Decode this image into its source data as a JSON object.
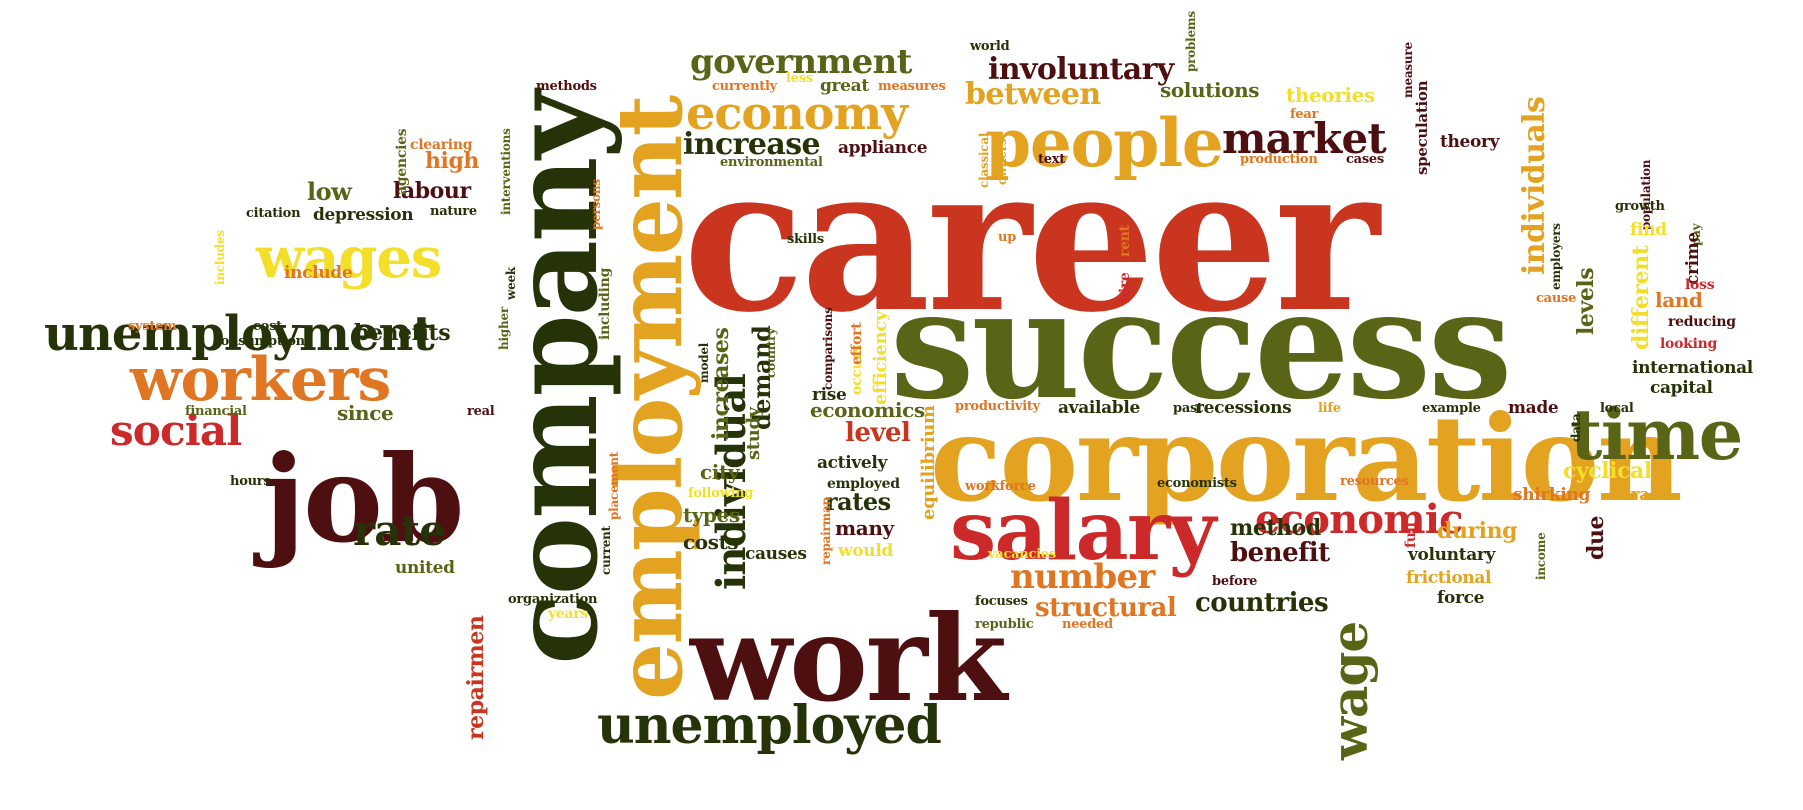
{
  "colors": {
    "red": "#c9351f",
    "olive": "#5a6416",
    "dark_green": "#263308",
    "maroon": "#4e0f10",
    "orange": "#e07522",
    "yellow": "#f3df2a",
    "gold": "#e3a21f",
    "crimson": "#cc2a2a",
    "light_orange": "#f2a33a"
  },
  "words": [
    {
      "text": "career",
      "color": "red"
    },
    {
      "text": "success",
      "color": "olive"
    },
    {
      "text": "company",
      "color": "dark_green"
    },
    {
      "text": "employment",
      "color": "gold"
    },
    {
      "text": "job",
      "color": "maroon"
    },
    {
      "text": "corporation",
      "color": "gold"
    },
    {
      "text": "work",
      "color": "maroon"
    },
    {
      "text": "salary",
      "color": "crimson"
    },
    {
      "text": "workers",
      "color": "orange"
    },
    {
      "text": "unemployment",
      "color": "dark_green"
    },
    {
      "text": "time",
      "color": "olive"
    },
    {
      "text": "unemployed",
      "color": "dark_green"
    },
    {
      "text": "people",
      "color": "gold"
    },
    {
      "text": "wages",
      "color": "yellow"
    },
    {
      "text": "economy",
      "color": "gold"
    },
    {
      "text": "individual",
      "color": "dark_green"
    },
    {
      "text": "market",
      "color": "maroon"
    },
    {
      "text": "economic",
      "color": "crimson"
    },
    {
      "text": "wage",
      "color": "olive"
    },
    {
      "text": "social",
      "color": "crimson"
    },
    {
      "text": "rate",
      "color": "dark_green"
    },
    {
      "text": "number",
      "color": "orange"
    },
    {
      "text": "government",
      "color": "olive"
    },
    {
      "text": "individuals",
      "color": "gold"
    },
    {
      "text": "involuntary",
      "color": "maroon"
    },
    {
      "text": "increase",
      "color": "dark_green"
    },
    {
      "text": "between",
      "color": "gold"
    },
    {
      "text": "structural",
      "color": "orange"
    },
    {
      "text": "countries",
      "color": "dark_green"
    },
    {
      "text": "benefit",
      "color": "maroon"
    },
    {
      "text": "repairmen",
      "color": "red"
    },
    {
      "text": "different",
      "color": "yellow"
    },
    {
      "text": "level",
      "color": "red"
    },
    {
      "text": "rates",
      "color": "dark_green"
    },
    {
      "text": "low",
      "color": "olive"
    },
    {
      "text": "labour",
      "color": "maroon"
    },
    {
      "text": "high",
      "color": "orange"
    },
    {
      "text": "depression",
      "color": "dark_green"
    },
    {
      "text": "benefits",
      "color": "dark_green"
    },
    {
      "text": "since",
      "color": "olive"
    },
    {
      "text": "solutions",
      "color": "olive"
    },
    {
      "text": "theories",
      "color": "yellow"
    },
    {
      "text": "theory",
      "color": "maroon"
    },
    {
      "text": "speculation",
      "color": "maroon"
    },
    {
      "text": "levels",
      "color": "olive"
    },
    {
      "text": "land",
      "color": "orange"
    },
    {
      "text": "international",
      "color": "dark_green"
    },
    {
      "text": "capital",
      "color": "dark_green"
    },
    {
      "text": "economics",
      "color": "olive"
    },
    {
      "text": "demand",
      "color": "dark_green"
    },
    {
      "text": "increases",
      "color": "olive"
    },
    {
      "text": "study",
      "color": "olive"
    },
    {
      "text": "employment",
      "color": "gold"
    },
    {
      "text": "recessions",
      "color": "dark_green"
    },
    {
      "text": "available",
      "color": "dark_green"
    },
    {
      "text": "cyclical",
      "color": "yellow"
    },
    {
      "text": "shirking",
      "color": "orange"
    },
    {
      "text": "trade",
      "color": "gold"
    },
    {
      "text": "method",
      "color": "dark_green"
    },
    {
      "text": "during",
      "color": "gold"
    },
    {
      "text": "due",
      "color": "maroon"
    },
    {
      "text": "voluntary",
      "color": "dark_green"
    },
    {
      "text": "frictional",
      "color": "gold"
    },
    {
      "text": "force",
      "color": "dark_green"
    },
    {
      "text": "made",
      "color": "maroon"
    },
    {
      "text": "city",
      "color": "olive"
    },
    {
      "text": "actively",
      "color": "dark_green"
    },
    {
      "text": "types",
      "color": "olive"
    },
    {
      "text": "costs",
      "color": "dark_green"
    },
    {
      "text": "causes",
      "color": "dark_green"
    },
    {
      "text": "many",
      "color": "maroon"
    },
    {
      "text": "would",
      "color": "yellow"
    },
    {
      "text": "united",
      "color": "olive"
    },
    {
      "text": "appliance",
      "color": "maroon"
    },
    {
      "text": "great",
      "color": "olive"
    },
    {
      "text": "world",
      "color": "dark_green"
    },
    {
      "text": "problems",
      "color": "olive"
    },
    {
      "text": "measure",
      "color": "maroon"
    },
    {
      "text": "population",
      "color": "maroon"
    },
    {
      "text": "growth",
      "color": "dark_green"
    },
    {
      "text": "find",
      "color": "yellow"
    },
    {
      "text": "pay",
      "color": "olive"
    },
    {
      "text": "crime",
      "color": "maroon"
    },
    {
      "text": "loss",
      "color": "crimson"
    },
    {
      "text": "reducing",
      "color": "maroon"
    },
    {
      "text": "looking",
      "color": "crimson"
    },
    {
      "text": "cause",
      "color": "orange"
    },
    {
      "text": "employers",
      "color": "dark_green"
    },
    {
      "text": "example",
      "color": "dark_green"
    },
    {
      "text": "local",
      "color": "dark_green"
    },
    {
      "text": "data",
      "color": "dark_green"
    },
    {
      "text": "past",
      "color": "dark_green"
    },
    {
      "text": "life",
      "color": "gold"
    },
    {
      "text": "productivity",
      "color": "orange"
    },
    {
      "text": "economists",
      "color": "dark_green"
    },
    {
      "text": "resources",
      "color": "orange"
    },
    {
      "text": "workforce",
      "color": "orange"
    },
    {
      "text": "vacancies",
      "color": "yellow"
    },
    {
      "text": "focuses",
      "color": "dark_green"
    },
    {
      "text": "republic",
      "color": "olive"
    },
    {
      "text": "needed",
      "color": "orange"
    },
    {
      "text": "before",
      "color": "maroon"
    },
    {
      "text": "full",
      "color": "crimson"
    },
    {
      "text": "income",
      "color": "olive"
    },
    {
      "text": "employed",
      "color": "dark_green"
    },
    {
      "text": "rise",
      "color": "dark_green"
    },
    {
      "text": "equilibrium",
      "color": "gold"
    },
    {
      "text": "efficiency",
      "color": "yellow"
    },
    {
      "text": "occurs",
      "color": "yellow"
    },
    {
      "text": "effort",
      "color": "orange"
    },
    {
      "text": "comparisons",
      "color": "maroon"
    },
    {
      "text": "country",
      "color": "olive"
    },
    {
      "text": "model",
      "color": "dark_green"
    },
    {
      "text": "repairman",
      "color": "orange"
    },
    {
      "text": "following",
      "color": "yellow"
    },
    {
      "text": "placement",
      "color": "orange"
    },
    {
      "text": "current",
      "color": "dark_green"
    },
    {
      "text": "organization",
      "color": "dark_green"
    },
    {
      "text": "years",
      "color": "yellow"
    },
    {
      "text": "hours",
      "color": "dark_green"
    },
    {
      "text": "financial",
      "color": "olive"
    },
    {
      "text": "real",
      "color": "maroon"
    },
    {
      "text": "higher",
      "color": "olive"
    },
    {
      "text": "consumption",
      "color": "dark_green"
    },
    {
      "text": "system",
      "color": "orange"
    },
    {
      "text": "cost",
      "color": "dark_green"
    },
    {
      "text": "include",
      "color": "orange"
    },
    {
      "text": "includes",
      "color": "yellow"
    },
    {
      "text": "citation",
      "color": "dark_green"
    },
    {
      "text": "nature",
      "color": "dark_green"
    },
    {
      "text": "week",
      "color": "dark_green"
    },
    {
      "text": "including",
      "color": "olive"
    },
    {
      "text": "persons",
      "color": "orange"
    },
    {
      "text": "agencies",
      "color": "olive"
    },
    {
      "text": "interventions",
      "color": "olive"
    },
    {
      "text": "clearing",
      "color": "orange"
    },
    {
      "text": "methods",
      "color": "maroon"
    },
    {
      "text": "currently",
      "color": "orange"
    },
    {
      "text": "less",
      "color": "yellow"
    },
    {
      "text": "measures",
      "color": "orange"
    },
    {
      "text": "environmental",
      "color": "olive"
    },
    {
      "text": "skills",
      "color": "dark_green"
    },
    {
      "text": "up",
      "color": "orange"
    },
    {
      "text": "rent",
      "color": "orange"
    },
    {
      "text": "hire",
      "color": "crimson"
    },
    {
      "text": "classical",
      "color": "gold"
    },
    {
      "text": "owners",
      "color": "gold"
    },
    {
      "text": "text",
      "color": "maroon"
    },
    {
      "text": "fear",
      "color": "orange"
    },
    {
      "text": "production",
      "color": "orange"
    },
    {
      "text": "cases",
      "color": "maroon"
    }
  ]
}
